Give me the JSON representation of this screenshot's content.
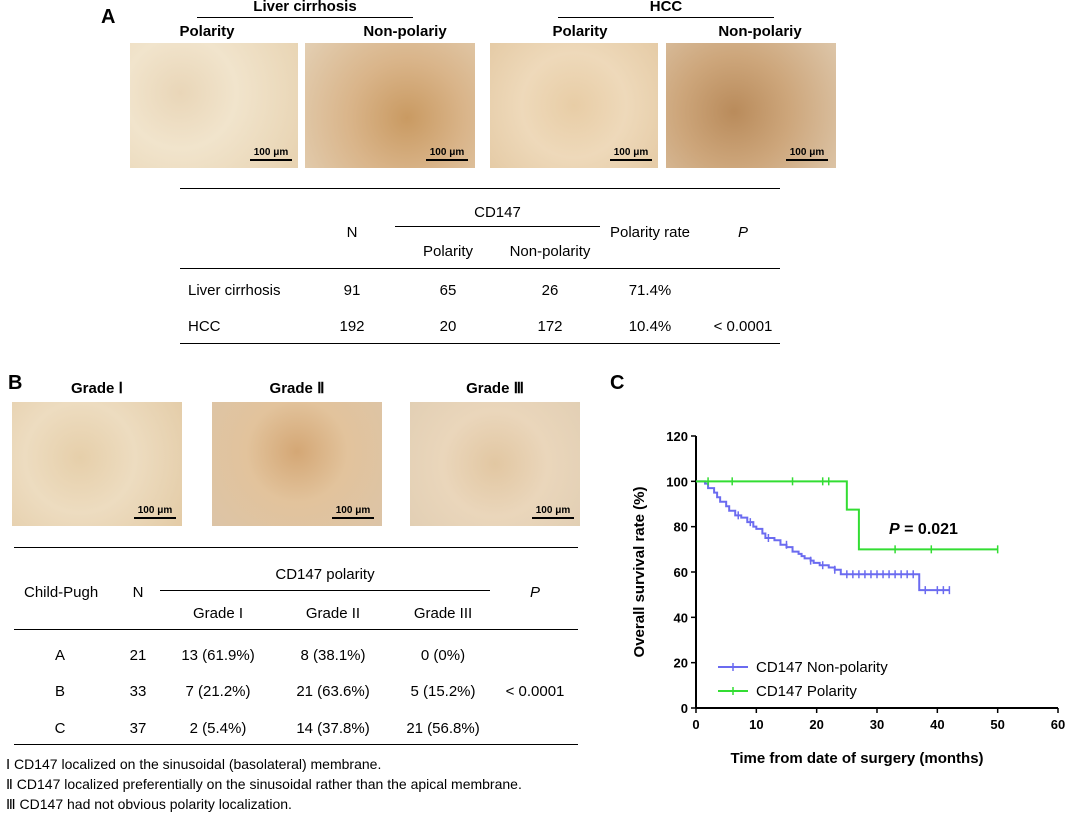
{
  "panel_a": {
    "letter": "A",
    "group_liver": "Liver cirrhosis",
    "group_hcc": "HCC",
    "img_labels": [
      "Polarity",
      "Non-polariy",
      "Polarity",
      "Non-polariy"
    ],
    "scale": "100 μm",
    "table": {
      "col_n": "N",
      "col_cd147": "CD147",
      "col_polarity": "Polarity",
      "col_nonpolarity": "Non-polarity",
      "col_rate": "Polarity rate",
      "col_p": "P",
      "rows": [
        {
          "label": "Liver cirrhosis",
          "n": "91",
          "pol": "65",
          "nonpol": "26",
          "rate": "71.4%",
          "p": ""
        },
        {
          "label": "HCC",
          "n": "192",
          "pol": "20",
          "nonpol": "172",
          "rate": "10.4%",
          "p": "< 0.0001"
        }
      ]
    }
  },
  "panel_b": {
    "letter": "B",
    "img_labels": [
      "Grade Ⅰ",
      "Grade Ⅱ",
      "Grade Ⅲ"
    ],
    "scale": "100 μm",
    "table": {
      "col_cp": "Child-Pugh",
      "col_n": "N",
      "col_group": "CD147 polarity",
      "col_g1": "Grade I",
      "col_g2": "Grade II",
      "col_g3": "Grade III",
      "col_p": "P",
      "rows": [
        {
          "label": "A",
          "n": "21",
          "g1": "13 (61.9%)",
          "g2": "8 (38.1%)",
          "g3": "0 (0%)",
          "p": ""
        },
        {
          "label": "B",
          "n": "33",
          "g1": "7 (21.2%)",
          "g2": "21 (63.6%)",
          "g3": "5 (15.2%)",
          "p": "< 0.0001"
        },
        {
          "label": "C",
          "n": "37",
          "g1": "2 (5.4%)",
          "g2": "14 (37.8%)",
          "g3": "21 (56.8%)",
          "p": ""
        }
      ]
    },
    "footnotes": [
      "Ⅰ CD147 localized on the sinusoidal (basolateral) membrane.",
      "Ⅱ CD147 localized preferentially on the sinusoidal rather than the apical membrane.",
      "Ⅲ CD147 had not obvious polarity localization."
    ]
  },
  "panel_c": {
    "letter": "C",
    "p_label": "P",
    "p_value": "= 0.021"
  },
  "chart_data": {
    "type": "line",
    "title": "",
    "xlabel": "Time from date of surgery (months)",
    "ylabel": "Overall survival rate (%)",
    "xlim": [
      0,
      60
    ],
    "ylim": [
      0,
      120
    ],
    "xticks": [
      0,
      10,
      20,
      30,
      40,
      50,
      60
    ],
    "yticks": [
      0,
      20,
      40,
      60,
      80,
      100,
      120
    ],
    "grid": false,
    "legend_position": "bottom-left",
    "series": [
      {
        "name": "CD147 Non-polarity",
        "color": "#6b6bf0",
        "steps": [
          [
            0,
            100
          ],
          [
            1.5,
            99
          ],
          [
            2,
            97
          ],
          [
            3,
            95
          ],
          [
            3.5,
            93
          ],
          [
            4,
            91
          ],
          [
            5,
            89
          ],
          [
            5.5,
            87
          ],
          [
            6.5,
            85
          ],
          [
            7.5,
            84
          ],
          [
            8.5,
            82
          ],
          [
            9.5,
            80
          ],
          [
            10,
            79
          ],
          [
            11,
            77
          ],
          [
            11.5,
            75
          ],
          [
            13,
            74
          ],
          [
            14,
            72
          ],
          [
            15,
            71
          ],
          [
            16,
            69
          ],
          [
            17,
            68
          ],
          [
            17.5,
            67
          ],
          [
            18,
            66
          ],
          [
            19,
            65
          ],
          [
            19.5,
            64
          ],
          [
            20.5,
            63
          ],
          [
            22,
            62
          ],
          [
            23,
            61
          ],
          [
            24,
            59
          ],
          [
            37,
            52
          ],
          [
            42,
            52
          ]
        ],
        "censored": [
          [
            7,
            85
          ],
          [
            9,
            82
          ],
          [
            12,
            75
          ],
          [
            15,
            72
          ],
          [
            19,
            65
          ],
          [
            21,
            63
          ],
          [
            23,
            61
          ],
          [
            25,
            59
          ],
          [
            26,
            59
          ],
          [
            27,
            59
          ],
          [
            28,
            59
          ],
          [
            29,
            59
          ],
          [
            30,
            59
          ],
          [
            31,
            59
          ],
          [
            32,
            59
          ],
          [
            33,
            59
          ],
          [
            34,
            59
          ],
          [
            35,
            59
          ],
          [
            36,
            59
          ],
          [
            38,
            52
          ],
          [
            40,
            52
          ],
          [
            41,
            52
          ],
          [
            42,
            52
          ]
        ]
      },
      {
        "name": "CD147 Polarity",
        "color": "#33dd33",
        "steps": [
          [
            0,
            100
          ],
          [
            25,
            87.5
          ],
          [
            27,
            70
          ],
          [
            50,
            70
          ]
        ],
        "censored": [
          [
            2,
            100
          ],
          [
            6,
            100
          ],
          [
            16,
            100
          ],
          [
            21,
            100
          ],
          [
            22,
            100
          ],
          [
            33,
            70
          ],
          [
            39,
            70
          ],
          [
            50,
            70
          ]
        ]
      }
    ]
  }
}
